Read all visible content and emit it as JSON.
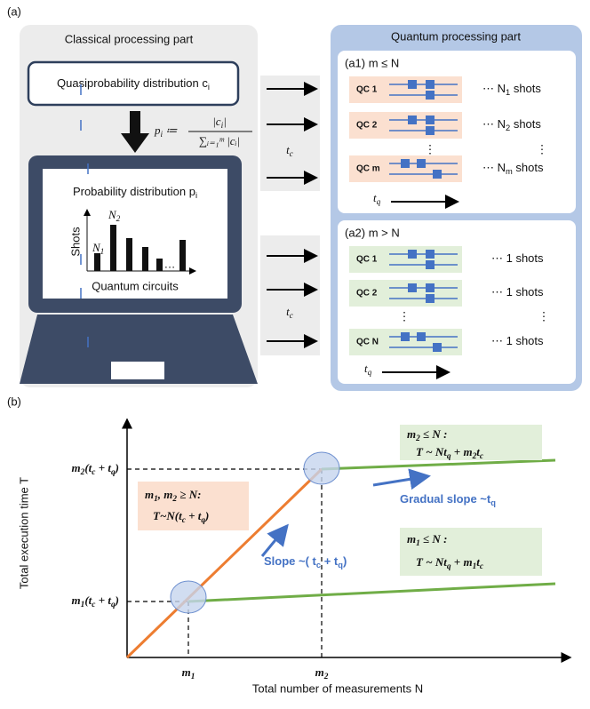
{
  "panel_a": {
    "label": "(a)",
    "classical": {
      "title": "Classical processing part",
      "quasi": [
        "Quasiprobability distribution c",
        "i"
      ],
      "formula": {
        "lhs": [
          "p",
          "i",
          " ≔"
        ],
        "numerator": [
          "|c",
          "i",
          "|"
        ],
        "denominator": "∑ᵢ₌₁ᵐ |cᵢ|"
      },
      "screen_title": [
        "Probability distribution p",
        "i"
      ],
      "y_axis": "Shots",
      "x_axis": "Quantum circuits",
      "peak1": [
        "N",
        "1"
      ],
      "peak2": [
        "N",
        "2"
      ],
      "ellipsis": "…"
    },
    "transfer": {
      "top": [
        "t",
        "c"
      ],
      "bottom": [
        "t",
        "c"
      ]
    },
    "quantum": {
      "title": "Quantum processing part",
      "a1": {
        "label": "(a1) m ≤ N",
        "rows": [
          {
            "circuit": "QC 1",
            "shots": [
              "⋯ N",
              "1",
              "  shots"
            ]
          },
          {
            "circuit": "QC 2",
            "shots": [
              "⋯ N",
              "2",
              "  shots"
            ]
          },
          {
            "circuit": "QC m",
            "shots": [
              "⋯ N",
              "m",
              "  shots"
            ]
          }
        ],
        "vdots": [
          "⋮",
          "⋮"
        ],
        "time": [
          "t",
          "q"
        ]
      },
      "a2": {
        "label": "(a2) m > N",
        "rows": [
          {
            "circuit": "QC 1",
            "shots": [
              "⋯ 1  shots"
            ]
          },
          {
            "circuit": "QC 2",
            "shots": [
              "⋯ 1  shots"
            ]
          },
          {
            "circuit": "QC N",
            "shots": [
              "⋯ 1  shots"
            ]
          }
        ],
        "vdots": [
          "⋮",
          "⋮"
        ],
        "time": [
          "t",
          "q"
        ]
      }
    }
  },
  "panel_b": {
    "label": "(b)",
    "y_title": "Total execution time T",
    "x_title": "Total number of measurements N",
    "y_ticks": [
      [
        "m",
        "1",
        "(t",
        "c",
        " + t",
        "q",
        ")"
      ],
      [
        "m",
        "2",
        "(t",
        "c",
        " + t",
        "q",
        ")"
      ]
    ],
    "x_ticks": [
      [
        "m",
        "1"
      ],
      [
        "m",
        "2"
      ]
    ],
    "orange_box": {
      "condition": [
        "m",
        "1",
        ", m",
        "2",
        " ≥ N:"
      ],
      "formula": [
        "T~N(t",
        "c",
        " + t",
        "q",
        ")"
      ]
    },
    "green_upper": {
      "condition": [
        "m",
        "2",
        " ≤ N :"
      ],
      "formula": [
        "T ~ Nt",
        "q",
        " + m",
        "2",
        "t",
        "c"
      ]
    },
    "green_lower": {
      "condition": [
        "m",
        "1",
        " ≤ N :"
      ],
      "formula": [
        "T ~ Nt",
        "q",
        " + m",
        "1",
        "t",
        "c"
      ]
    },
    "slope": [
      "Slope ~( t",
      "c",
      " + t",
      "q",
      ")"
    ],
    "gradual": [
      "Gradual slope ~t",
      "q"
    ]
  }
}
